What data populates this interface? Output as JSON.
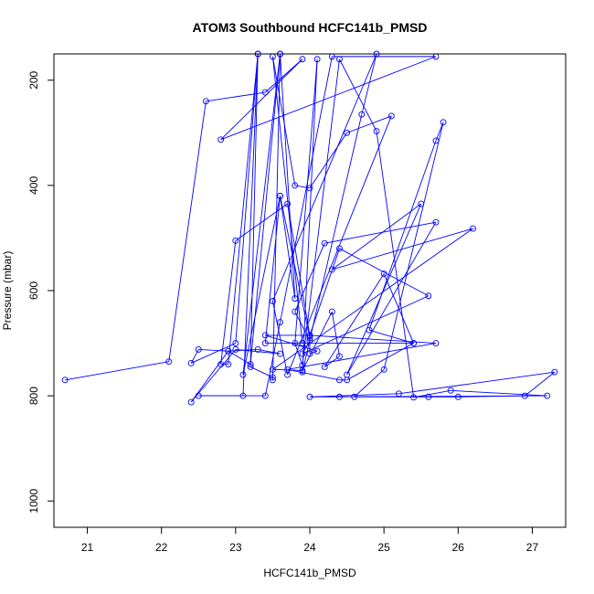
{
  "chart_data": {
    "type": "line",
    "title": "ATOM3 Southbound HCFC141b_PMSD",
    "xlabel": "HCFC141b_PMSD",
    "ylabel": "Pressure (mbar)",
    "xlim": [
      20.55,
      27.45
    ],
    "ylim": [
      1050,
      150
    ],
    "xticks": [
      21,
      22,
      23,
      24,
      25,
      26,
      27
    ],
    "yticks": [
      200,
      400,
      600,
      800,
      1000
    ],
    "line_color": "#0000ff",
    "marker": "open-circle",
    "series": [
      {
        "points": [
          [
            20.7,
            770
          ],
          [
            22.1,
            735
          ],
          [
            22.6,
            240
          ],
          [
            23.4,
            223
          ],
          [
            23.9,
            160
          ],
          [
            22.8,
            313
          ],
          [
            25.7,
            155
          ],
          [
            24.3,
            155
          ],
          [
            23.6,
            660
          ],
          [
            23.4,
            800
          ],
          [
            22.5,
            800
          ],
          [
            23.1,
            800
          ],
          [
            23.3,
            150
          ],
          [
            23.2,
            745
          ],
          [
            23.5,
            765
          ],
          [
            23.5,
            770
          ],
          [
            23.6,
            150
          ],
          [
            23.1,
            760
          ],
          [
            23.6,
            420
          ],
          [
            24.0,
            690
          ],
          [
            24.0,
            720
          ],
          [
            24.1,
            715
          ],
          [
            23.4,
            685
          ],
          [
            24.0,
            685
          ],
          [
            25.7,
            700
          ],
          [
            23.7,
            750
          ],
          [
            24.4,
            770
          ],
          [
            24.5,
            770
          ],
          [
            25.4,
            700
          ],
          [
            23.4,
            700
          ],
          [
            23.6,
            420
          ],
          [
            23.8,
            615
          ],
          [
            23.6,
            150
          ],
          [
            23.2,
            740
          ],
          [
            22.9,
            715
          ],
          [
            22.4,
            812
          ],
          [
            23.0,
            712
          ],
          [
            23.6,
            720
          ],
          [
            23.3,
            712
          ],
          [
            22.9,
            715
          ],
          [
            22.5,
            712
          ],
          [
            22.4,
            738
          ],
          [
            23.0,
            700
          ],
          [
            23.3,
            150
          ],
          [
            22.9,
            740
          ],
          [
            22.8,
            740
          ],
          [
            23.0,
            505
          ],
          [
            23.7,
            435
          ],
          [
            24.0,
            685
          ],
          [
            24.4,
            520
          ],
          [
            25.6,
            610
          ],
          [
            23.9,
            720
          ],
          [
            24.0,
            695
          ],
          [
            23.8,
            640
          ],
          [
            24.2,
            510
          ],
          [
            25.7,
            470
          ],
          [
            24.5,
            760
          ],
          [
            25.5,
            435
          ],
          [
            24.3,
            560
          ],
          [
            26.2,
            482
          ],
          [
            23.5,
            750
          ],
          [
            23.9,
            752
          ],
          [
            24.3,
            640
          ],
          [
            24.4,
            725
          ],
          [
            24.2,
            745
          ],
          [
            25.0,
            568
          ],
          [
            25.4,
            700
          ],
          [
            24.8,
            675
          ],
          [
            25.7,
            315
          ],
          [
            25.8,
            280
          ],
          [
            25.0,
            750
          ],
          [
            24.6,
            802
          ],
          [
            25.6,
            802
          ],
          [
            26.0,
            802
          ],
          [
            26.9,
            800
          ],
          [
            27.3,
            755
          ],
          [
            25.2,
            796
          ],
          [
            24.0,
            802
          ],
          [
            24.4,
            802
          ],
          [
            27.2,
            800
          ],
          [
            25.9,
            790
          ],
          [
            25.4,
            803
          ],
          [
            24.9,
            297
          ],
          [
            24.4,
            160
          ],
          [
            23.9,
            742
          ],
          [
            23.8,
            700
          ],
          [
            24.1,
            160
          ],
          [
            23.9,
            755
          ],
          [
            24.7,
            265
          ],
          [
            24.9,
            150
          ],
          [
            23.5,
            620
          ],
          [
            23.7,
            760
          ],
          [
            25.1,
            268
          ],
          [
            24.5,
            300
          ],
          [
            24.0,
            405
          ],
          [
            23.8,
            400
          ],
          [
            23.5,
            155
          ],
          [
            23.9,
            700
          ]
        ]
      }
    ]
  }
}
